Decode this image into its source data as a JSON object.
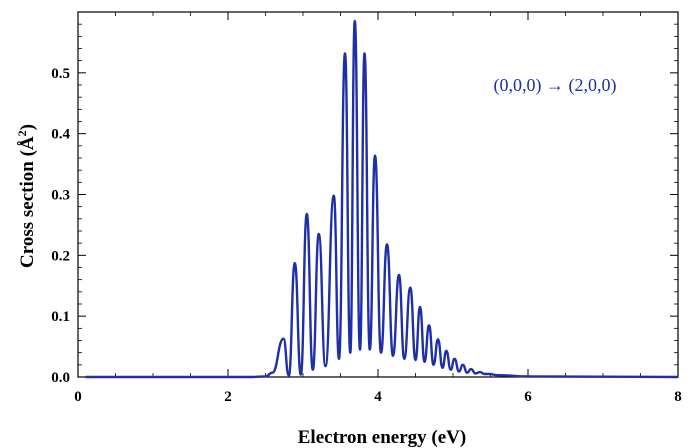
{
  "chart_data": {
    "type": "line",
    "title": "",
    "xlabel": "Electron energy (eV)",
    "ylabel_main": "Cross section (",
    "ylabel_unit": "Å",
    "ylabel_sup": "2",
    "ylabel_close": ")",
    "xlim": [
      0,
      8
    ],
    "ylim": [
      0,
      0.6
    ],
    "x_ticks": [
      {
        "value": 0,
        "label": "0"
      },
      {
        "value": 2,
        "label": "2"
      },
      {
        "value": 4,
        "label": "4"
      },
      {
        "value": 6,
        "label": "6"
      },
      {
        "value": 8,
        "label": "8"
      }
    ],
    "y_ticks": [
      {
        "value": 0.0,
        "label": "0.0"
      },
      {
        "value": 0.1,
        "label": "0.1"
      },
      {
        "value": 0.2,
        "label": "0.2"
      },
      {
        "value": 0.3,
        "label": "0.3"
      },
      {
        "value": 0.4,
        "label": "0.4"
      },
      {
        "value": 0.5,
        "label": "0.5"
      }
    ],
    "annotation": "(0,0,0) → (2,0,0)",
    "line_color": "#1f2fa8",
    "grid": false,
    "peaks": [
      {
        "x": 2.59,
        "y": 0.007
      },
      {
        "x": 2.74,
        "y": 0.063
      },
      {
        "x": 2.89,
        "y": 0.187
      },
      {
        "x": 3.05,
        "y": 0.268
      },
      {
        "x": 3.21,
        "y": 0.235
      },
      {
        "x": 3.41,
        "y": 0.298
      },
      {
        "x": 3.56,
        "y": 0.532
      },
      {
        "x": 3.69,
        "y": 0.585
      },
      {
        "x": 3.82,
        "y": 0.532
      },
      {
        "x": 3.96,
        "y": 0.364
      },
      {
        "x": 4.12,
        "y": 0.218
      },
      {
        "x": 4.28,
        "y": 0.168
      },
      {
        "x": 4.43,
        "y": 0.147
      },
      {
        "x": 4.56,
        "y": 0.115
      },
      {
        "x": 4.68,
        "y": 0.085
      },
      {
        "x": 4.8,
        "y": 0.062
      },
      {
        "x": 4.91,
        "y": 0.043
      },
      {
        "x": 5.02,
        "y": 0.03
      },
      {
        "x": 5.13,
        "y": 0.02
      },
      {
        "x": 5.24,
        "y": 0.013
      },
      {
        "x": 5.36,
        "y": 0.008
      },
      {
        "x": 5.48,
        "y": 0.005
      }
    ],
    "valleys": [
      {
        "x": 2.81,
        "y": 0.002
      },
      {
        "x": 2.97,
        "y": 0.004
      },
      {
        "x": 3.13,
        "y": 0.012
      },
      {
        "x": 3.3,
        "y": 0.018
      },
      {
        "x": 3.48,
        "y": 0.03
      },
      {
        "x": 3.63,
        "y": 0.04
      },
      {
        "x": 3.76,
        "y": 0.045
      },
      {
        "x": 3.89,
        "y": 0.045
      },
      {
        "x": 4.04,
        "y": 0.04
      },
      {
        "x": 4.2,
        "y": 0.035
      },
      {
        "x": 4.35,
        "y": 0.03
      },
      {
        "x": 4.5,
        "y": 0.028
      },
      {
        "x": 4.62,
        "y": 0.025
      },
      {
        "x": 4.74,
        "y": 0.02
      },
      {
        "x": 4.86,
        "y": 0.015
      },
      {
        "x": 4.97,
        "y": 0.012
      },
      {
        "x": 5.08,
        "y": 0.009
      },
      {
        "x": 5.19,
        "y": 0.007
      },
      {
        "x": 5.3,
        "y": 0.006
      },
      {
        "x": 5.42,
        "y": 0.005
      }
    ],
    "baseline": 0.0
  }
}
